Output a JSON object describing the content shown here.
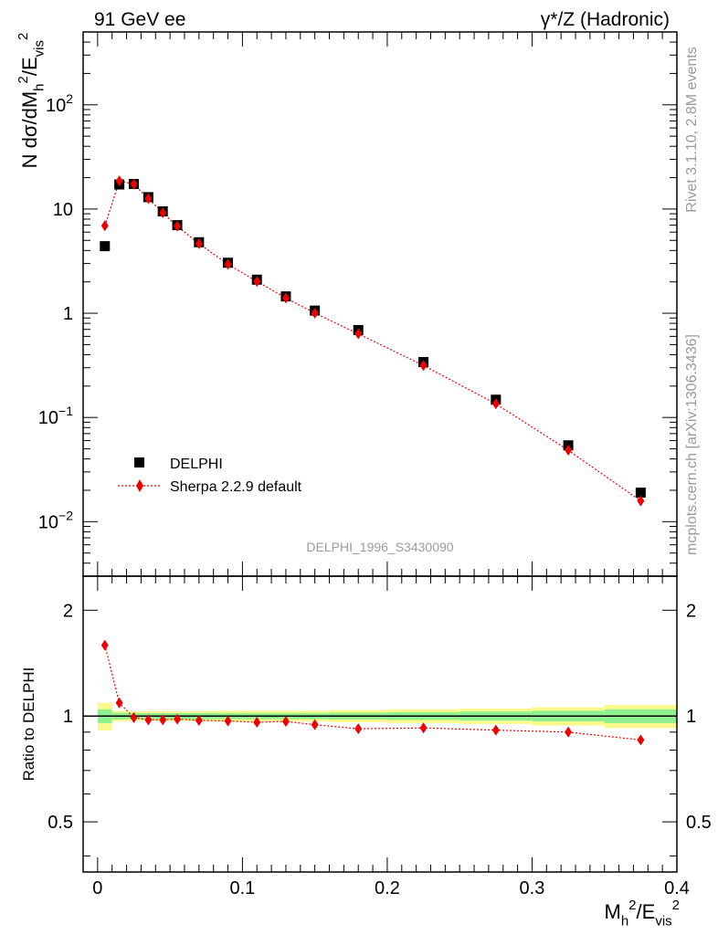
{
  "header": {
    "left_title": "91 GeV ee",
    "right_title": "γ*/Z (Hadronic)"
  },
  "side_labels": {
    "rivet": "Rivet 3.1.10,  2.8M events",
    "mcplots": "mcplots.cern.ch [arXiv:1306.3436]"
  },
  "analysis_id": "DELPHI_1996_S3430090",
  "chart_data": [
    {
      "type": "scatter",
      "panel": "main",
      "ylabel": "N dσ/dM_h^2/E_vis^2",
      "yscale": "log",
      "ylim": [
        0.003,
        500
      ],
      "xlim": [
        -0.01,
        0.4
      ],
      "y_tick_labels": [
        {
          "value": 0.01,
          "label": "10",
          "exp": "−2"
        },
        {
          "value": 0.1,
          "label": "10",
          "exp": "−1"
        },
        {
          "value": 1,
          "label": "1",
          "exp": ""
        },
        {
          "value": 10,
          "label": "10",
          "exp": ""
        },
        {
          "value": 100,
          "label": "10",
          "exp": "2"
        }
      ],
      "legend_position": "bottom-left",
      "series": [
        {
          "name": "DELPHI",
          "style": "markers",
          "marker": "square",
          "color": "#000000",
          "x": [
            0.005,
            0.015,
            0.025,
            0.035,
            0.045,
            0.055,
            0.07,
            0.09,
            0.11,
            0.13,
            0.15,
            0.18,
            0.225,
            0.275,
            0.325,
            0.375
          ],
          "y": [
            4.4,
            17.2,
            17.4,
            13.0,
            9.5,
            7.0,
            4.8,
            3.05,
            2.1,
            1.45,
            1.06,
            0.69,
            0.34,
            0.148,
            0.054,
            0.019
          ]
        },
        {
          "name": "Sherpa 2.2.9 default",
          "style": "dotted-line-markers",
          "marker": "diamond",
          "color": "#ee0000",
          "x": [
            0.005,
            0.015,
            0.025,
            0.035,
            0.045,
            0.055,
            0.07,
            0.09,
            0.11,
            0.13,
            0.15,
            0.18,
            0.225,
            0.275,
            0.325,
            0.375
          ],
          "y": [
            6.9,
            18.6,
            17.3,
            12.6,
            9.2,
            6.85,
            4.65,
            2.95,
            2.02,
            1.4,
            1.0,
            0.635,
            0.315,
            0.135,
            0.0485,
            0.0158
          ]
        }
      ]
    },
    {
      "type": "line",
      "panel": "ratio",
      "xlabel": "M_h^2/E_vis^2",
      "ylabel": "Ratio to DELPHI",
      "yscale": "log",
      "ylim": [
        0.36,
        2.5
      ],
      "xlim": [
        -0.01,
        0.4
      ],
      "x_tick_labels": [
        "0",
        "0.1",
        "0.2",
        "0.3",
        "0.4"
      ],
      "y_tick_labels": [
        "0.5",
        "1",
        "2"
      ],
      "reference_line": 1,
      "uncertainty_bands": {
        "bin_edges": [
          0.0,
          0.01,
          0.02,
          0.03,
          0.04,
          0.05,
          0.06,
          0.08,
          0.1,
          0.12,
          0.14,
          0.16,
          0.2,
          0.25,
          0.3,
          0.35,
          0.4
        ],
        "stat_halfwidth": [
          0.045,
          0.022,
          0.02,
          0.02,
          0.02,
          0.02,
          0.02,
          0.02,
          0.02,
          0.02,
          0.02,
          0.022,
          0.025,
          0.03,
          0.035,
          0.045
        ],
        "total_halfwidth": [
          0.09,
          0.035,
          0.032,
          0.032,
          0.032,
          0.032,
          0.033,
          0.035,
          0.035,
          0.035,
          0.035,
          0.04,
          0.045,
          0.05,
          0.06,
          0.075
        ],
        "stat_color": "#8ff08f",
        "total_color": "#fafa8c"
      },
      "series": [
        {
          "name": "Sherpa 2.2.9 default",
          "color": "#ee0000",
          "x": [
            0.005,
            0.015,
            0.025,
            0.035,
            0.045,
            0.055,
            0.07,
            0.09,
            0.11,
            0.13,
            0.15,
            0.18,
            0.225,
            0.275,
            0.325,
            0.375
          ],
          "y": [
            1.59,
            1.09,
            0.99,
            0.975,
            0.975,
            0.98,
            0.972,
            0.968,
            0.96,
            0.965,
            0.945,
            0.92,
            0.925,
            0.912,
            0.9,
            0.855
          ]
        }
      ]
    }
  ]
}
